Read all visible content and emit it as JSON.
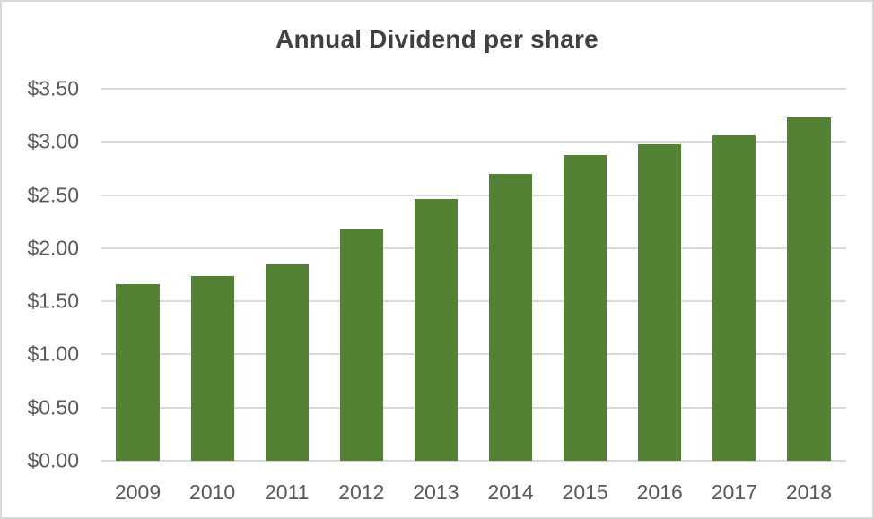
{
  "chart_data": {
    "type": "bar",
    "title": "Annual Dividend per share",
    "categories": [
      "2009",
      "2010",
      "2011",
      "2012",
      "2013",
      "2014",
      "2015",
      "2016",
      "2017",
      "2018"
    ],
    "values": [
      1.66,
      1.74,
      1.85,
      2.18,
      2.46,
      2.7,
      2.88,
      2.98,
      3.06,
      3.23
    ],
    "xlabel": "",
    "ylabel": "",
    "ylim": [
      0,
      3.5
    ],
    "ytick_step": 0.5,
    "ytick_labels": [
      "$0.00",
      "$0.50",
      "$1.00",
      "$1.50",
      "$2.00",
      "$2.50",
      "$3.00",
      "$3.50"
    ],
    "grid": "horizontal gridlines on",
    "legend": "none",
    "colors": {
      "bar_fill": "#548235",
      "gridline": "#d9d9d9",
      "axis_line": "#d9d9d9",
      "tick_label": "#595959",
      "title": "#404040",
      "background": "#ffffff",
      "frame_border": "#d9d9d9"
    }
  }
}
